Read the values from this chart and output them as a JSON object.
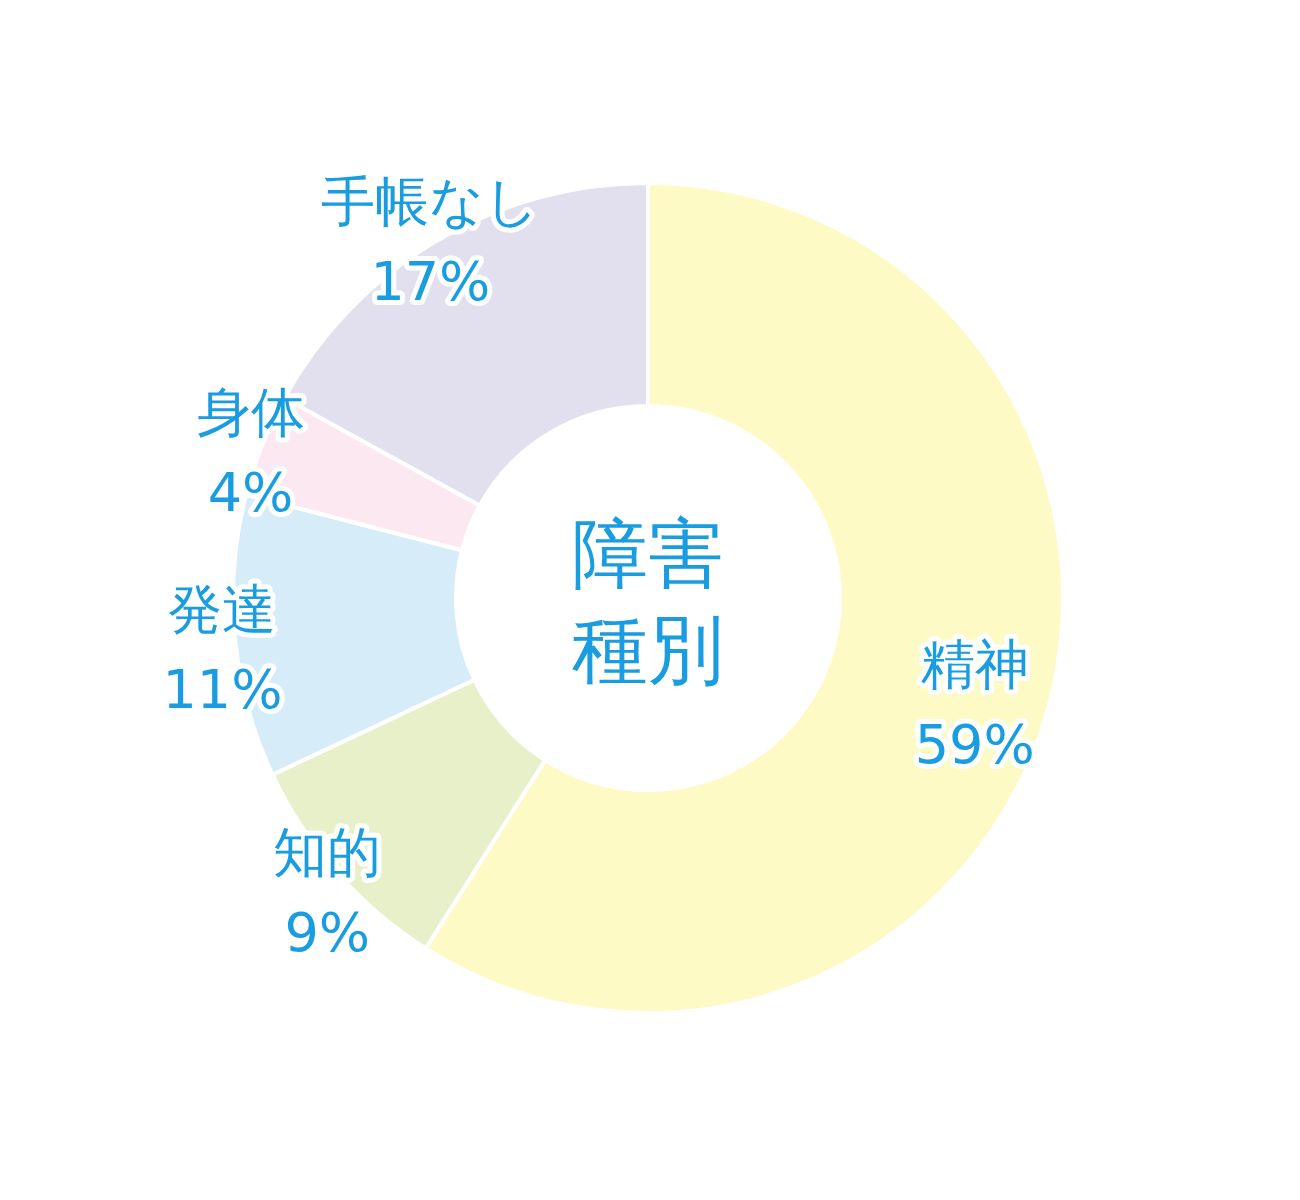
{
  "chart_data": {
    "type": "donut",
    "title": "障害種別",
    "categories": [
      "精神",
      "知的",
      "発達",
      "身体",
      "手帳なし"
    ],
    "values": [
      59,
      9,
      11,
      4,
      17
    ],
    "colors": [
      "#fdfac6",
      "#e8f0c9",
      "#d6ecf8",
      "#fbe8f1",
      "#e2e0ee"
    ],
    "value_labels": [
      "59%",
      "9%",
      "11%",
      "4%",
      "17%"
    ]
  }
}
